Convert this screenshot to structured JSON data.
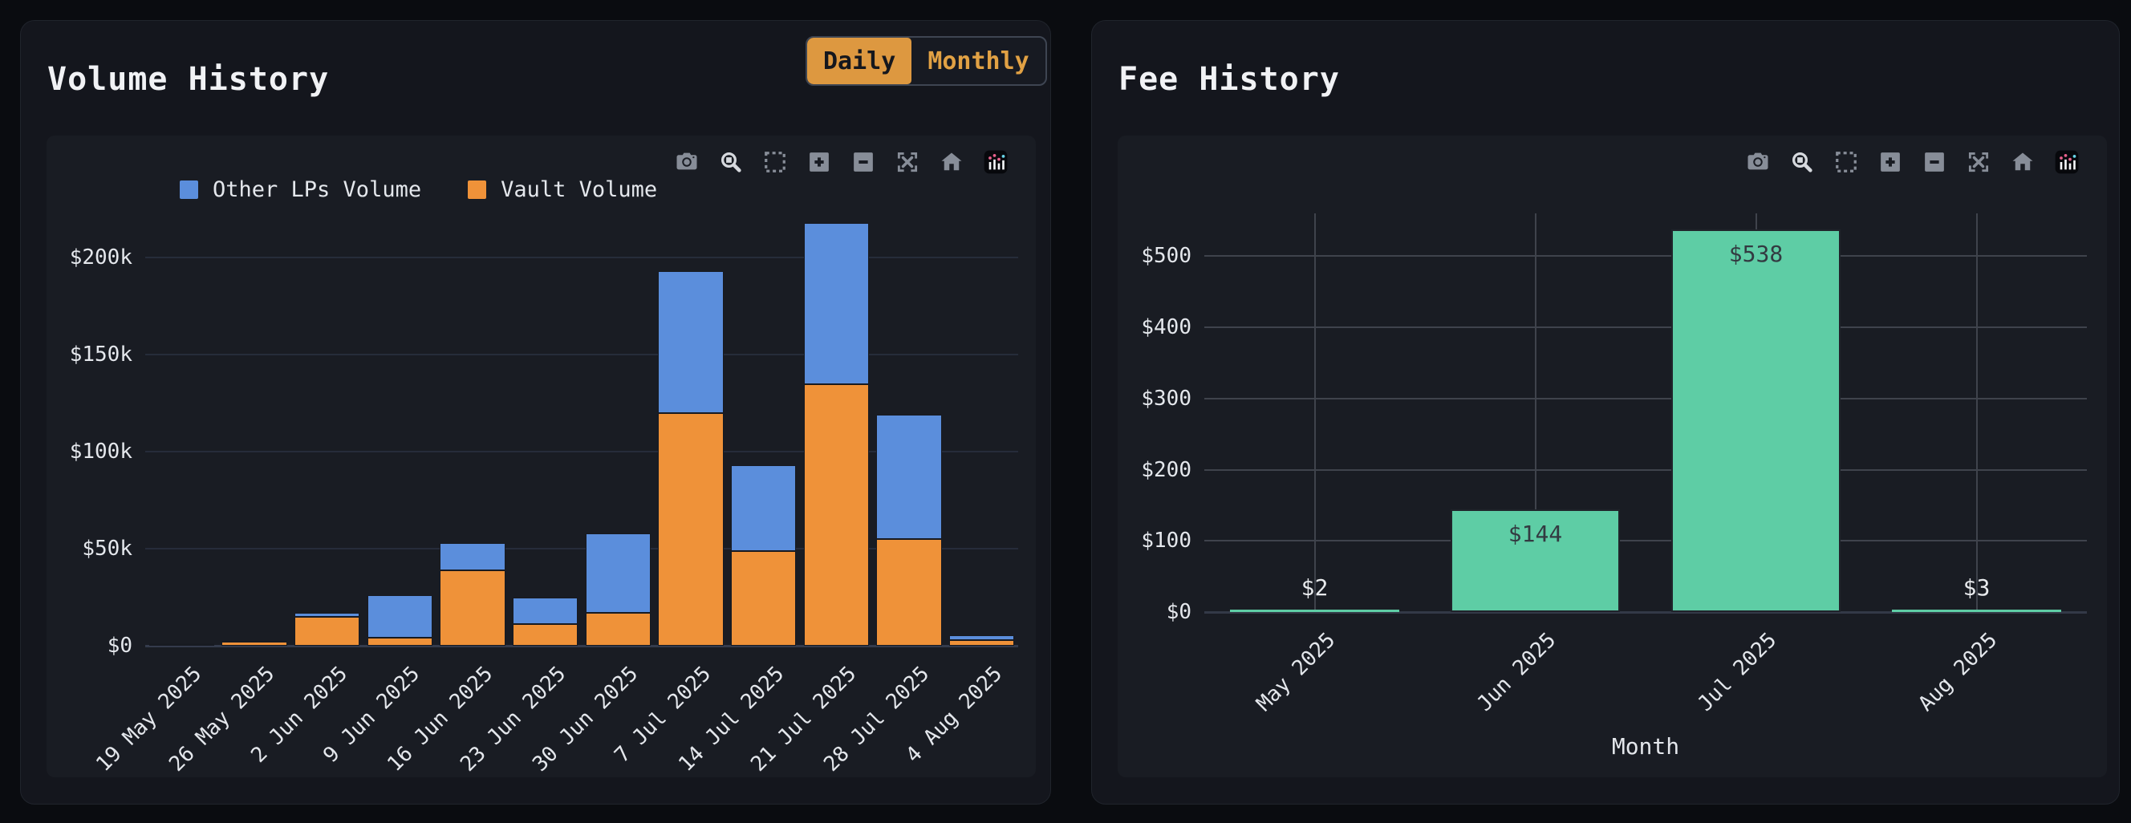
{
  "volume_panel": {
    "title": "Volume History",
    "toggle": {
      "options": [
        "Daily",
        "Monthly"
      ],
      "active": "Daily"
    },
    "modebar": {
      "buttons": [
        "camera-icon",
        "zoom-icon",
        "box-select-icon",
        "zoom-in-icon",
        "zoom-out-icon",
        "autoscale-icon",
        "home-icon",
        "plotly-logo-icon"
      ],
      "active": "zoom-icon"
    },
    "chart_data": {
      "type": "bar",
      "stacked": true,
      "categories": [
        "19 May 2025",
        "26 May 2025",
        "2 Jun 2025",
        "9 Jun 2025",
        "16 Jun 2025",
        "23 Jun 2025",
        "30 Jun 2025",
        "7 Jul 2025",
        "14 Jul 2025",
        "21 Jul 2025",
        "28 Jul 2025",
        "4 Aug 2025"
      ],
      "series": [
        {
          "name": "Other LPs Volume",
          "color": "#5b8edc",
          "values": [
            200,
            300,
            2000,
            22000,
            14000,
            14000,
            41000,
            73000,
            44000,
            83000,
            64000,
            2400
          ]
        },
        {
          "name": "Vault Volume",
          "color": "#ef9239",
          "values": [
            300,
            2000,
            15000,
            4000,
            39000,
            11000,
            17000,
            120000,
            49000,
            135000,
            55000,
            2900
          ]
        }
      ],
      "stack_note": "last series (Vault Volume, orange) is the bottom of each stack",
      "ylim": [
        0,
        225000
      ],
      "yticks": [
        {
          "v": 0,
          "label": "$0"
        },
        {
          "v": 50000,
          "label": "$50k"
        },
        {
          "v": 100000,
          "label": "$100k"
        },
        {
          "v": 150000,
          "label": "$150k"
        },
        {
          "v": 200000,
          "label": "$200k"
        }
      ],
      "legend_position": "top-left"
    }
  },
  "fee_panel": {
    "title": "Fee History",
    "modebar": {
      "buttons": [
        "camera-icon",
        "zoom-icon",
        "box-select-icon",
        "zoom-in-icon",
        "zoom-out-icon",
        "autoscale-icon",
        "home-icon",
        "plotly-logo-icon"
      ],
      "active": "zoom-icon"
    },
    "chart_data": {
      "type": "bar",
      "categories": [
        "May 2025",
        "Jun 2025",
        "Jul 2025",
        "Aug 2025"
      ],
      "values": [
        2,
        144,
        538,
        3
      ],
      "bar_labels": [
        "$2",
        "$144",
        "$538",
        "$3"
      ],
      "bar_color": "#5ecda5",
      "xlabel": "Month",
      "ylim": [
        0,
        560
      ],
      "yticks": [
        {
          "v": 0,
          "label": "$0"
        },
        {
          "v": 100,
          "label": "$100"
        },
        {
          "v": 200,
          "label": "$200"
        },
        {
          "v": 300,
          "label": "$300"
        },
        {
          "v": 400,
          "label": "$400"
        },
        {
          "v": 500,
          "label": "$500"
        }
      ]
    }
  },
  "colors": {
    "page_bg": "#0a0c10",
    "panel_bg": "#14161d",
    "paper_bg": "#191c23",
    "volume_grid": "#262c3a",
    "volume_axis": "#343b4c",
    "fee_grid": "#3f434c",
    "fee_axis": "#333947",
    "toggle_active_bg": "#dd9840",
    "toggle_inactive_text": "#e1a144",
    "inside_bar_label": "#333a41",
    "outside_bar_label": "#e8eaed",
    "modebar_icon": "#878d98",
    "modebar_icon_active": "#d6d9de"
  }
}
